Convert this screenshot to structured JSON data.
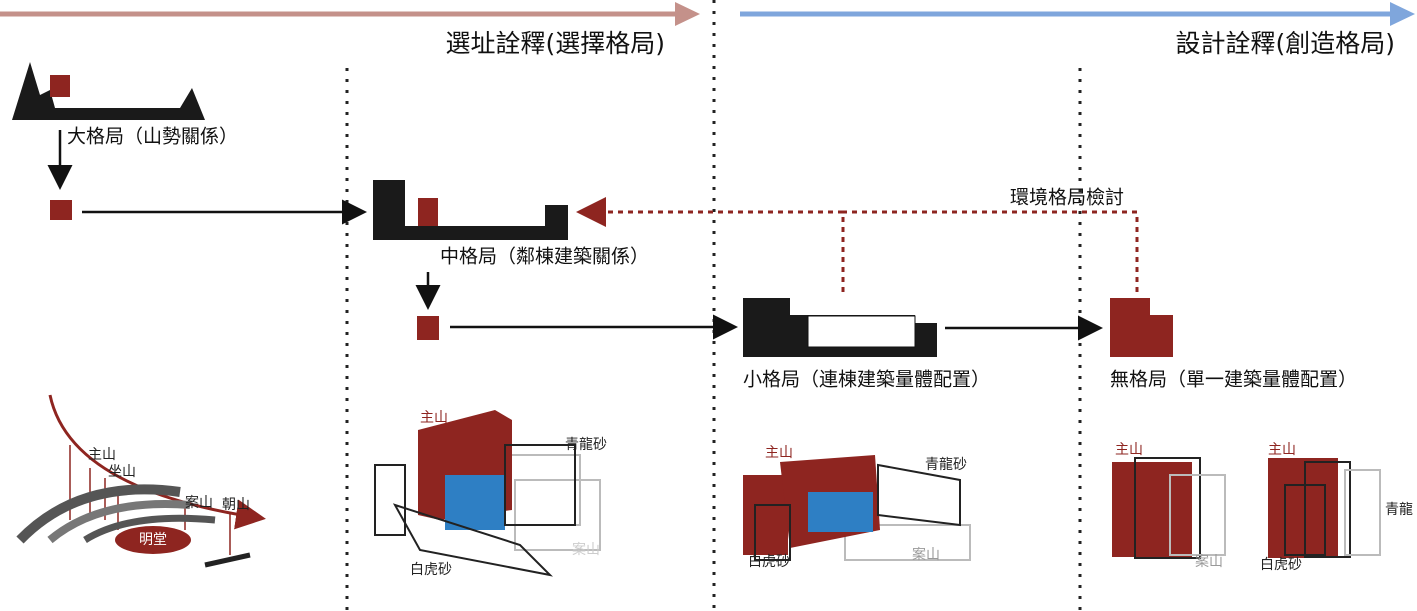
{
  "phases": [
    {
      "label": "選址詮釋(選擇格局)"
    },
    {
      "label": "設計詮釋(創造格局)"
    }
  ],
  "levels": [
    {
      "label": "大格局（山勢關係）"
    },
    {
      "label": "中格局（鄰棟建築關係）"
    },
    {
      "label": "小格局（連棟建築量體配置）"
    },
    {
      "label": "無格局（單一建築量體配置）"
    }
  ],
  "feedback": {
    "label": "環境格局檢討"
  },
  "illustrations": [
    {
      "labels": [
        "主山",
        "坐山",
        "案山",
        "朝山",
        "明堂"
      ]
    },
    {
      "labels": [
        "主山",
        "青龍砂",
        "白虎砂",
        "案山"
      ]
    },
    {
      "labels": [
        "主山",
        "青龍砂",
        "白虎砂",
        "案山"
      ]
    },
    {
      "labels": [
        "主山",
        "案山",
        "主山",
        "青龍",
        "白虎砂"
      ]
    }
  ]
}
